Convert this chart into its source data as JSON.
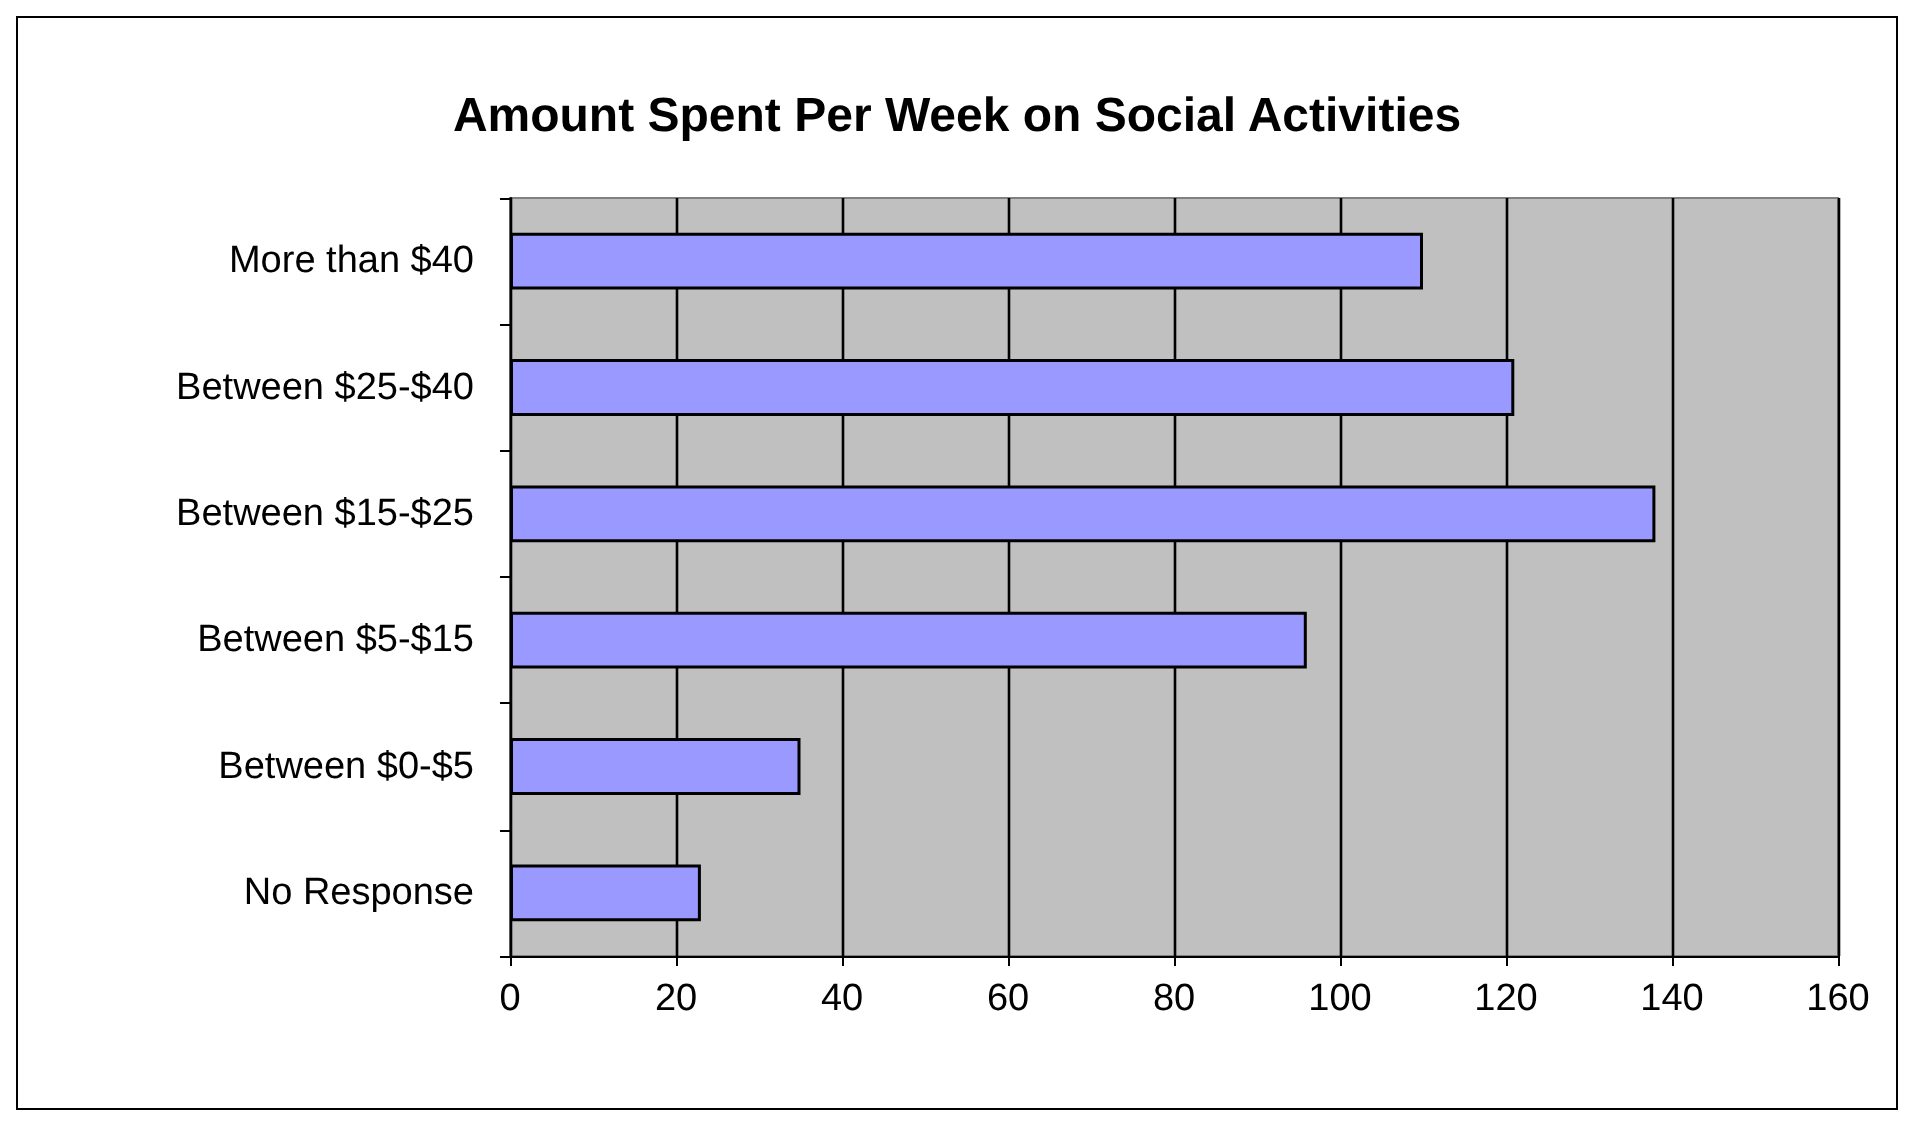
{
  "chart_data": {
    "type": "bar",
    "orientation": "horizontal",
    "title": "Amount Spent Per Week on Social Activities",
    "categories": [
      "More than $40",
      "Between $25-$40",
      "Between $15-$25",
      "Between $5-$15",
      "Between $0-$5",
      "No Response"
    ],
    "values": [
      110,
      121,
      138,
      96,
      35,
      23
    ],
    "color": "#9999ff",
    "xlim": [
      0,
      160
    ],
    "xticks": [
      0,
      20,
      40,
      60,
      80,
      100,
      120,
      140,
      160
    ],
    "grid": "x"
  }
}
